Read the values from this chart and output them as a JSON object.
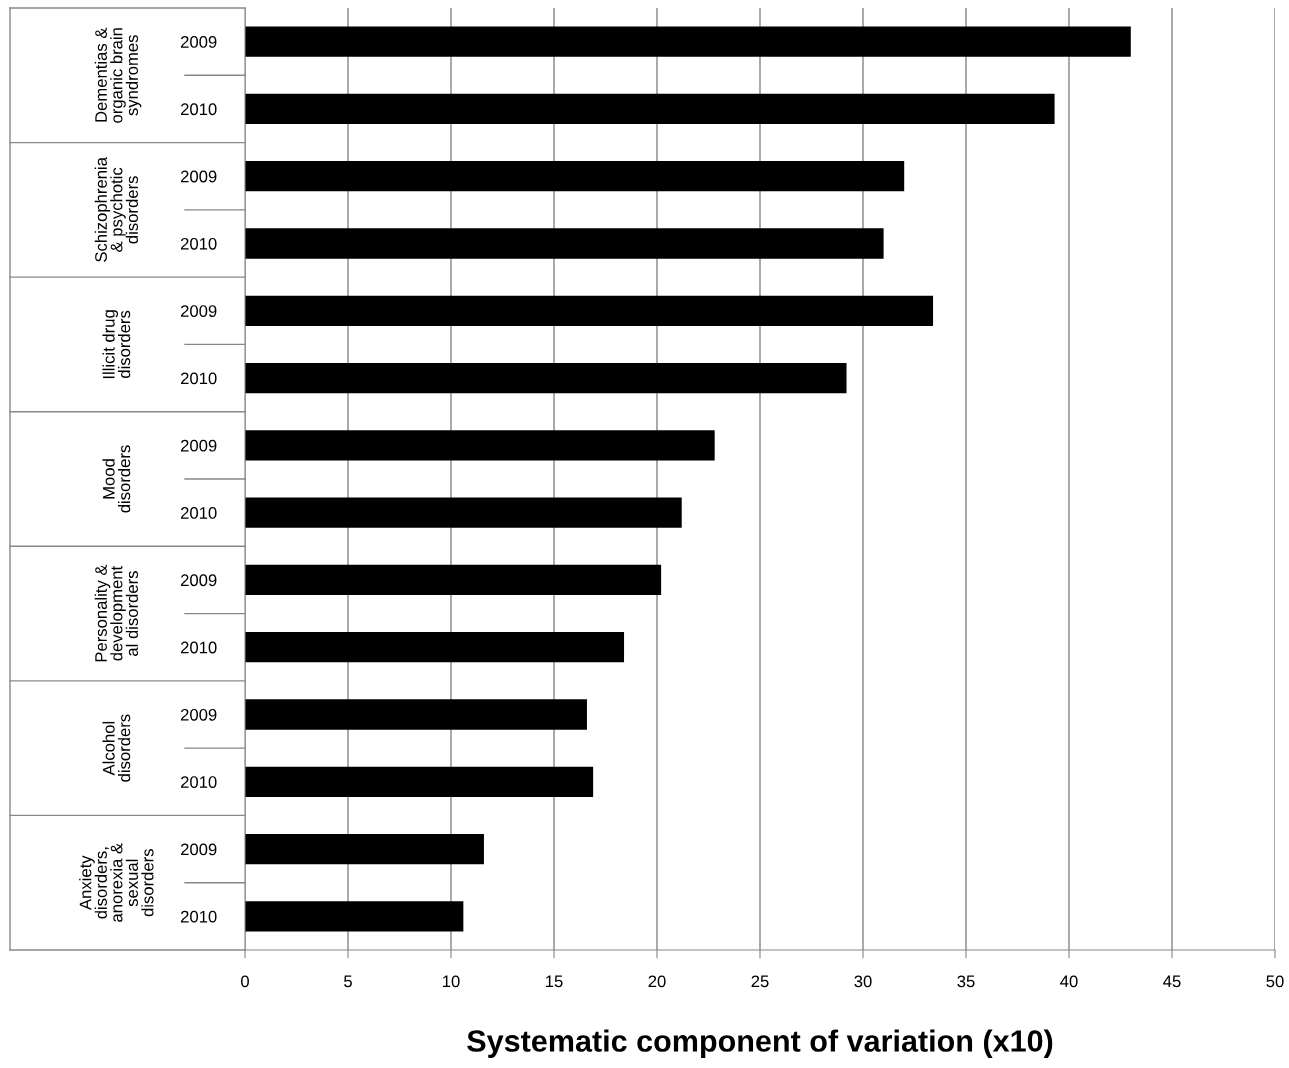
{
  "chart_data": {
    "type": "bar",
    "orientation": "horizontal",
    "xlabel": "Systematic component of variation (x10)",
    "categories": [
      "2009",
      "2010",
      "2009",
      "2010",
      "2009",
      "2010",
      "2009",
      "2010",
      "2009",
      "2010",
      "2009",
      "2010",
      "2009",
      "2010"
    ],
    "values": [
      43.0,
      39.3,
      32.0,
      31.0,
      33.4,
      29.2,
      22.8,
      21.2,
      20.2,
      18.4,
      16.6,
      16.9,
      11.6,
      10.6
    ],
    "color": "#000000",
    "annotations": [
      "Dementias & organic brain syndromes",
      "Schizophrenia & psychotic disorders",
      "Illicit drug disorders",
      "Mood disorders",
      "Personality & development al disorders",
      "Alcohol disorders",
      "Anxiety disorders, anorexia & sexual disorders"
    ],
    "xlim": [
      0,
      50
    ],
    "xticks": [
      0,
      5,
      10,
      15,
      20,
      25,
      30,
      35,
      40,
      45,
      50
    ],
    "grid": "x",
    "legend": false
  }
}
